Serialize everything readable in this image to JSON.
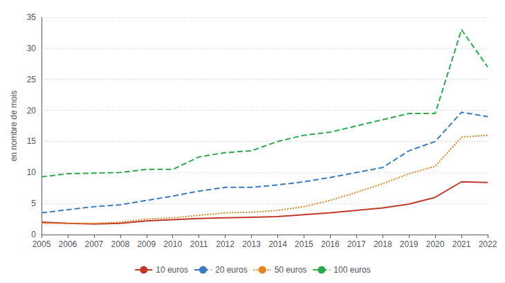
{
  "chart_data": {
    "type": "line",
    "y_label": "en nombre de mois",
    "categories": [
      2005,
      2006,
      2007,
      2008,
      2009,
      2010,
      2011,
      2012,
      2013,
      2014,
      2015,
      2016,
      2017,
      2018,
      2019,
      2020,
      2021,
      2022
    ],
    "series": [
      {
        "name": "10 euros",
        "color": "#c0392b",
        "line_style": "solid",
        "values": [
          2.0,
          1.8,
          1.7,
          1.8,
          2.2,
          2.4,
          2.6,
          2.7,
          2.8,
          2.9,
          3.2,
          3.5,
          3.9,
          4.3,
          4.9,
          6.0,
          8.5,
          8.4
        ]
      },
      {
        "name": "20 euros",
        "color": "#3b7bbf",
        "line_style": "dashed",
        "values": [
          3.5,
          4.0,
          4.5,
          4.8,
          5.5,
          6.2,
          7.0,
          7.6,
          7.6,
          8.0,
          8.5,
          9.2,
          10.0,
          10.8,
          13.5,
          15.0,
          19.7,
          19.0
        ]
      },
      {
        "name": "50 euros",
        "color": "#e8821e",
        "line_style": "dotted",
        "values": [
          1.8,
          1.8,
          1.8,
          2.0,
          2.5,
          2.7,
          3.1,
          3.5,
          3.6,
          3.9,
          4.5,
          5.5,
          6.8,
          8.2,
          9.8,
          11.0,
          15.7,
          16.0
        ]
      },
      {
        "name": "100 euros",
        "color": "#2aaa4a",
        "line_style": "dashed",
        "values": [
          9.3,
          9.8,
          9.9,
          10.0,
          10.5,
          10.5,
          12.5,
          13.2,
          13.5,
          15.0,
          16.0,
          16.5,
          17.5,
          18.5,
          19.5,
          19.5,
          33.0,
          27.0
        ]
      }
    ],
    "ylim": [
      0,
      35
    ],
    "yticks": [
      0,
      5,
      10,
      15,
      20,
      25,
      30,
      35
    ],
    "grid": true,
    "legend": "bottom"
  }
}
